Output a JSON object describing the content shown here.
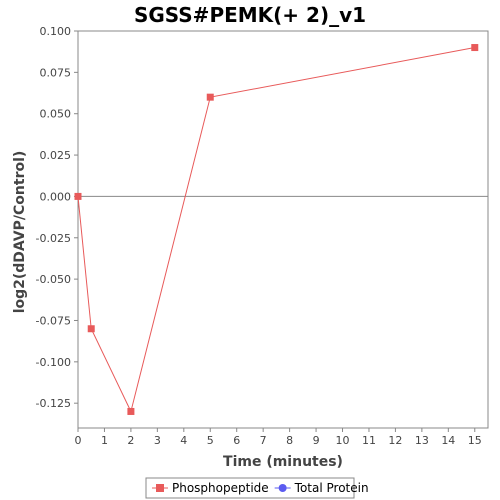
{
  "chart_data": {
    "type": "line",
    "title": "SGSS#PEMK(+ 2)_v1",
    "xlabel": "Time (minutes)",
    "ylabel": "log2(dDAVP/Control)",
    "xlim": [
      0,
      15.5
    ],
    "ylim": [
      -0.14,
      0.1
    ],
    "xticks": [
      0,
      1,
      2,
      3,
      4,
      5,
      6,
      7,
      8,
      9,
      10,
      11,
      12,
      13,
      14,
      15
    ],
    "yticks": [
      0.1,
      0.075,
      0.05,
      0.025,
      0.0,
      -0.025,
      -0.05,
      -0.075,
      -0.1,
      -0.125
    ],
    "ytick_labels": [
      "0.100",
      "0.075",
      "0.050",
      "0.025",
      "0.000",
      "-0.025",
      "-0.050",
      "-0.075",
      "-0.100",
      "-0.125"
    ],
    "zero_line": true,
    "legend_placement": "bottom",
    "series": [
      {
        "name": "Phosphopeptide",
        "color": "#e85a5a",
        "marker": "square",
        "x": [
          0,
          0.5,
          2,
          5,
          15
        ],
        "y": [
          0.0,
          -0.08,
          -0.13,
          0.06,
          0.09
        ]
      },
      {
        "name": "Total Protein",
        "color": "#5b5bf0",
        "marker": "circle",
        "x": [],
        "y": []
      }
    ]
  }
}
